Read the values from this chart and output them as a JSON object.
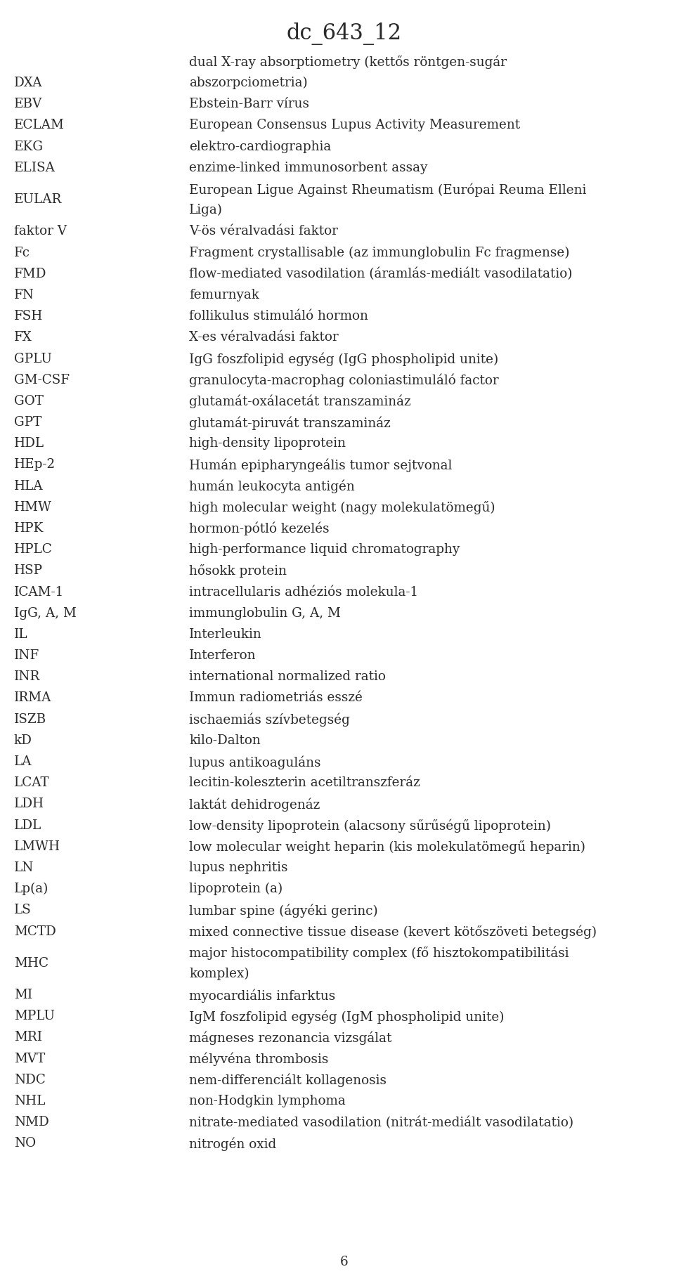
{
  "title": "dc_643_12",
  "title_fontsize": 22,
  "font_family": "DejaVu Serif",
  "text_color": "#2a2a2a",
  "background_color": "#ffffff",
  "entries": [
    [
      "",
      "dual X-ray absorptiometry (kettős röntgen-sugár"
    ],
    [
      "DXA",
      "abszorpciometria)"
    ],
    [
      "EBV",
      "Ebstein-Barr vírus"
    ],
    [
      "ECLAM",
      "European Consensus Lupus Activity Measurement"
    ],
    [
      "EKG",
      "elektro-cardiographia"
    ],
    [
      "ELISA",
      "enzime-linked immunosorbent assay"
    ],
    [
      "EULAR",
      "European Ligue Against Rheumatism (Európai Reuma Elleni\nLiga)"
    ],
    [
      "faktor V",
      "V-ös véralvadási faktor"
    ],
    [
      "Fc",
      "Fragment crystallisable (az immunglobulin Fc fragmense)"
    ],
    [
      "FMD",
      "flow-mediated vasodilation (áramlás-mediált vasodilatatio)"
    ],
    [
      "FN",
      "femurnyak"
    ],
    [
      "FSH",
      "follikulus stimuláló hormon"
    ],
    [
      "FX",
      "X-es véralvadási faktor"
    ],
    [
      "GPLU",
      "IgG foszfolipid egység (IgG phospholipid unite)"
    ],
    [
      "GM-CSF",
      "granulocyta-macrophag coloniastimuláló factor"
    ],
    [
      "GOT",
      "glutamát-oxálacetát transzamináz"
    ],
    [
      "GPT",
      "glutamát-piruvát transzamináz"
    ],
    [
      "HDL",
      "high-density lipoprotein"
    ],
    [
      "HEp-2",
      "Humán epipharyngeális tumor sejtvonal"
    ],
    [
      "HLA",
      "humán leukocyta antigén"
    ],
    [
      "HMW",
      "high molecular weight (nagy molekulatömegű)"
    ],
    [
      "HPK",
      "hormon-pótló kezelés"
    ],
    [
      "HPLC",
      "high-performance liquid chromatography"
    ],
    [
      "HSP",
      "hősokk protein"
    ],
    [
      "ICAM-1",
      "intracellularis adhéziós molekula-1"
    ],
    [
      "IgG, A, M",
      "immunglobulin G, A, M"
    ],
    [
      "IL",
      "Interleukin"
    ],
    [
      "INF",
      "Interferon"
    ],
    [
      "INR",
      "international normalized ratio"
    ],
    [
      "IRMA",
      "Immun radiometriás esszé"
    ],
    [
      "ISZB",
      "ischaemiás szívbetegség"
    ],
    [
      "kD",
      "kilo-Dalton"
    ],
    [
      "LA",
      "lupus antikoaguláns"
    ],
    [
      "LCAT",
      "lecitin-koleszterin acetiltranszferáz"
    ],
    [
      "LDH",
      "laktát dehidrogenáz"
    ],
    [
      "LDL",
      "low-density lipoprotein (alacsony sűrűségű lipoprotein)"
    ],
    [
      "LMWH",
      "low molecular weight heparin (kis molekulatömegű heparin)"
    ],
    [
      "LN",
      "lupus nephritis"
    ],
    [
      "Lp(a)",
      "lipoprotein (a)"
    ],
    [
      "LS",
      "lumbar spine (ágyéki gerinc)"
    ],
    [
      "MCTD",
      "mixed connective tissue disease (kevert kötőszöveti betegség)"
    ],
    [
      "MHC",
      "major histocompatibility complex (fő hisztokompatibilitási\nkomplex)"
    ],
    [
      "MI",
      "myocardiális infarktus"
    ],
    [
      "MPLU",
      "IgM foszfolipid egység (IgM phospholipid unite)"
    ],
    [
      "MRI",
      "mágneses rezonancia vizsgálat"
    ],
    [
      "MVT",
      "mélyvéna thrombosis"
    ],
    [
      "NDC",
      "nem-differenciált kollagenosis"
    ],
    [
      "NHL",
      "non-Hodgkin lymphoma"
    ],
    [
      "NMD",
      "nitrate-mediated vasodilation (nitrát-mediált vasodilatatio)"
    ],
    [
      "NO",
      "nitrogén oxid"
    ]
  ],
  "page_number": "6"
}
